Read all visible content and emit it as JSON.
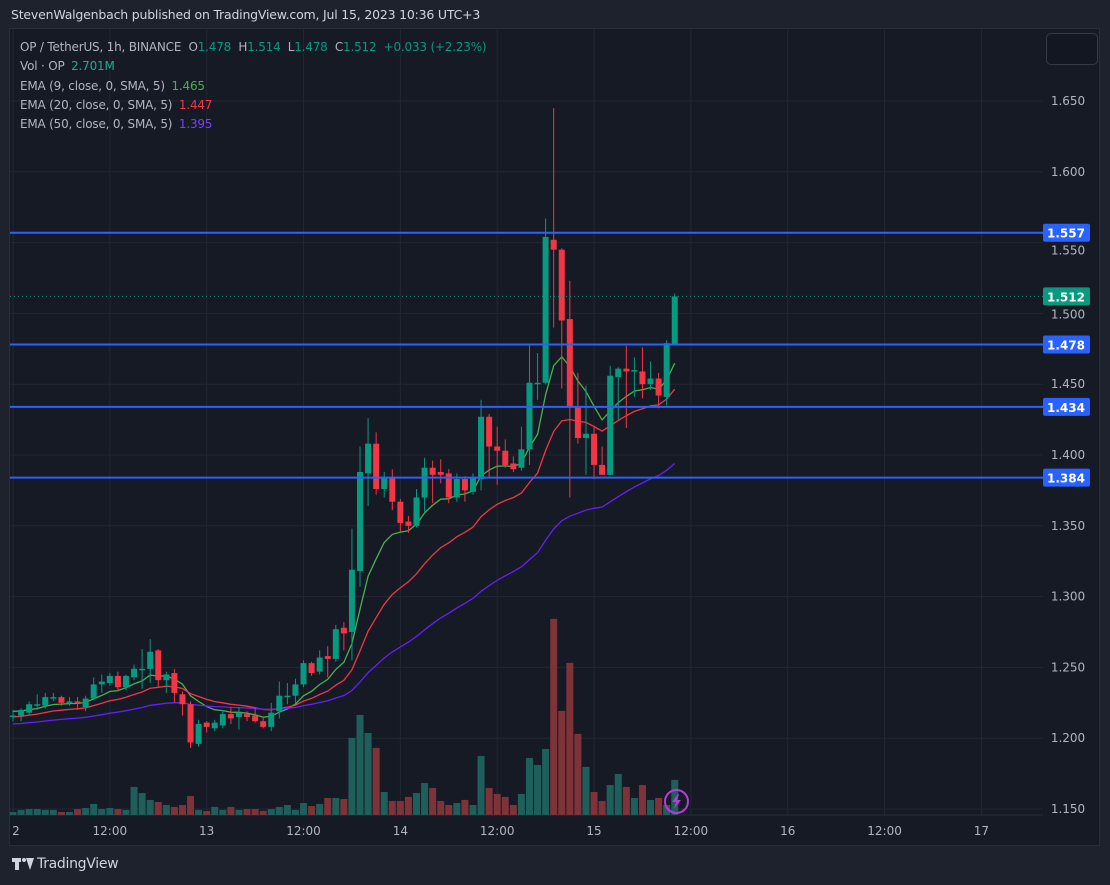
{
  "header": {
    "attribution": "StevenWalgenbach published on TradingView.com, Jul 15, 2023 10:36 UTC+3"
  },
  "legend": {
    "symbol": "OP / TetherUS, 1h, BINANCE",
    "o_label": "O",
    "o_value": "1.478",
    "h_label": "H",
    "h_value": "1.514",
    "l_label": "L",
    "l_value": "1.478",
    "c_label": "C",
    "c_value": "1.512",
    "change": "+0.033 (+2.23%)",
    "vol_label": "Vol · OP",
    "vol_value": "2.701M",
    "ema9_label": "EMA (9, close, 0, SMA, 5)",
    "ema9_value": "1.465",
    "ema20_label": "EMA (20, close, 0, SMA, 5)",
    "ema20_value": "1.447",
    "ema50_label": "EMA (50, close, 0, SMA, 5)",
    "ema50_value": "1.395"
  },
  "footer": {
    "brand": "TradingView"
  },
  "colors": {
    "up": "#089981",
    "down": "#f23645",
    "vol_up": "#1f5f5b",
    "vol_down": "#7e3339",
    "level": "#2962ff",
    "ema9": "#4caf50",
    "ema20": "#f23645",
    "ema50": "#651fff",
    "grid": "#232733",
    "axis_text": "#b2b5be"
  },
  "chart_data": {
    "type": "candlestick",
    "title": "OP / TetherUS, 1h, BINANCE",
    "ylim": [
      1.15,
      1.7
    ],
    "price_ticks": [
      "1.650",
      "1.600",
      "1.550",
      "1.500",
      "1.450",
      "1.400",
      "1.350",
      "1.300",
      "1.250",
      "1.200",
      "1.150"
    ],
    "time_ticks": [
      {
        "label": "2",
        "bar_index": 0
      },
      {
        "label": "12:00",
        "bar_index": 12
      },
      {
        "label": "13",
        "bar_index": 24
      },
      {
        "label": "12:00",
        "bar_index": 36
      },
      {
        "label": "14",
        "bar_index": 48
      },
      {
        "label": "12:00",
        "bar_index": 60
      },
      {
        "label": "15",
        "bar_index": 72
      },
      {
        "label": "12:00",
        "bar_index": 84
      },
      {
        "label": "16",
        "bar_index": 96
      },
      {
        "label": "12:00",
        "bar_index": 108
      },
      {
        "label": "17",
        "bar_index": 120
      }
    ],
    "open": [
      1.216,
      1.216,
      1.218,
      1.224,
      1.223,
      1.229,
      1.229,
      1.226,
      1.226,
      1.222,
      1.228,
      1.238,
      1.239,
      1.244,
      1.236,
      1.243,
      1.249,
      1.249,
      1.262,
      1.241,
      1.246,
      1.231,
      1.224,
      1.196,
      1.211,
      1.207,
      1.209,
      1.217,
      1.215,
      1.217,
      1.216,
      1.212,
      1.208,
      1.219,
      1.23,
      1.23,
      1.238,
      1.253,
      1.247,
      1.258,
      1.256,
      1.278,
      1.275,
      1.318,
      1.387,
      1.408,
      1.376,
      1.384,
      1.367,
      1.353,
      1.35,
      1.37,
      1.391,
      1.388,
      1.387,
      1.37,
      1.383,
      1.374,
      1.383,
      1.427,
      1.406,
      1.403,
      1.394,
      1.391,
      1.404,
      1.451,
      1.451,
      1.552,
      1.545,
      1.496,
      1.434,
      1.412,
      1.415,
      1.393,
      1.386,
      1.455,
      1.461,
      1.459,
      1.459,
      1.45,
      1.454,
      1.441,
      1.478
    ],
    "high": [
      1.22,
      1.221,
      1.226,
      1.231,
      1.232,
      1.232,
      1.23,
      1.229,
      1.229,
      1.23,
      1.243,
      1.245,
      1.246,
      1.247,
      1.245,
      1.252,
      1.263,
      1.27,
      1.263,
      1.247,
      1.249,
      1.233,
      1.226,
      1.213,
      1.212,
      1.213,
      1.22,
      1.222,
      1.222,
      1.219,
      1.222,
      1.215,
      1.225,
      1.24,
      1.239,
      1.242,
      1.255,
      1.254,
      1.262,
      1.265,
      1.28,
      1.282,
      1.348,
      1.406,
      1.426,
      1.416,
      1.388,
      1.39,
      1.369,
      1.357,
      1.376,
      1.398,
      1.396,
      1.397,
      1.39,
      1.387,
      1.385,
      1.387,
      1.439,
      1.429,
      1.42,
      1.411,
      1.399,
      1.42,
      1.478,
      1.472,
      1.567,
      1.645,
      1.546,
      1.523,
      1.458,
      1.449,
      1.42,
      1.406,
      1.463,
      1.462,
      1.477,
      1.469,
      1.476,
      1.466,
      1.458,
      1.481,
      1.514
    ],
    "low": [
      1.212,
      1.212,
      1.216,
      1.22,
      1.221,
      1.226,
      1.223,
      1.223,
      1.22,
      1.219,
      1.227,
      1.232,
      1.237,
      1.233,
      1.234,
      1.241,
      1.235,
      1.239,
      1.236,
      1.232,
      1.225,
      1.216,
      1.193,
      1.194,
      1.204,
      1.205,
      1.207,
      1.21,
      1.206,
      1.212,
      1.211,
      1.207,
      1.205,
      1.214,
      1.224,
      1.225,
      1.236,
      1.244,
      1.245,
      1.243,
      1.254,
      1.262,
      1.255,
      1.307,
      1.364,
      1.372,
      1.37,
      1.361,
      1.346,
      1.345,
      1.349,
      1.36,
      1.366,
      1.38,
      1.366,
      1.367,
      1.367,
      1.372,
      1.375,
      1.384,
      1.379,
      1.391,
      1.388,
      1.389,
      1.393,
      1.439,
      1.45,
      1.49,
      1.447,
      1.37,
      1.408,
      1.386,
      1.383,
      1.386,
      1.386,
      1.425,
      1.419,
      1.441,
      1.44,
      1.446,
      1.433,
      1.435,
      1.478
    ],
    "close": [
      1.216,
      1.22,
      1.224,
      1.224,
      1.229,
      1.229,
      1.225,
      1.226,
      1.225,
      1.228,
      1.238,
      1.24,
      1.244,
      1.236,
      1.244,
      1.249,
      1.249,
      1.261,
      1.241,
      1.245,
      1.232,
      1.224,
      1.197,
      1.21,
      1.208,
      1.211,
      1.217,
      1.214,
      1.218,
      1.215,
      1.212,
      1.208,
      1.218,
      1.23,
      1.23,
      1.238,
      1.253,
      1.246,
      1.257,
      1.256,
      1.277,
      1.274,
      1.319,
      1.388,
      1.408,
      1.376,
      1.384,
      1.367,
      1.352,
      1.35,
      1.37,
      1.391,
      1.386,
      1.386,
      1.37,
      1.383,
      1.375,
      1.384,
      1.427,
      1.406,
      1.403,
      1.393,
      1.39,
      1.404,
      1.451,
      1.451,
      1.554,
      1.545,
      1.495,
      1.434,
      1.412,
      1.415,
      1.393,
      1.386,
      1.456,
      1.461,
      1.459,
      1.46,
      1.45,
      1.454,
      1.442,
      1.479,
      1.512
    ],
    "volume_unit": "M",
    "volume": [
      0.23,
      0.39,
      0.46,
      0.46,
      0.39,
      0.39,
      0.23,
      0.23,
      0.46,
      0.54,
      0.85,
      0.46,
      0.54,
      0.46,
      0.39,
      2.16,
      1.69,
      1.16,
      1.0,
      0.77,
      0.62,
      0.77,
      1.46,
      0.39,
      0.31,
      0.62,
      0.39,
      0.62,
      0.39,
      0.46,
      0.46,
      0.31,
      0.46,
      0.62,
      0.77,
      0.39,
      0.92,
      0.69,
      0.85,
      1.31,
      1.31,
      1.23,
      5.93,
      7.7,
      6.31,
      5.16,
      1.77,
      1.08,
      1.08,
      1.39,
      1.69,
      2.46,
      2.08,
      1.08,
      0.77,
      0.92,
      1.16,
      0.77,
      4.54,
      2.08,
      1.62,
      1.39,
      0.77,
      1.62,
      4.39,
      3.85,
      5.08,
      15.09,
      8.01,
      11.7,
      6.24,
      3.7,
      1.77,
      1.08,
      2.31,
      3.16,
      2.16,
      1.31,
      2.31,
      1.16,
      1.31,
      0.77,
      2.7
    ],
    "ema": [
      {
        "name": "EMA 9",
        "period": 9,
        "start_value": 1.219,
        "color_key": "ema9"
      },
      {
        "name": "EMA 20",
        "period": 20,
        "start_value": 1.215,
        "color_key": "ema20"
      },
      {
        "name": "EMA 50",
        "period": 50,
        "start_value": 1.21,
        "color_key": "ema50"
      }
    ],
    "levels": [
      {
        "value": 1.557,
        "label": "1.557"
      },
      {
        "value": 1.478,
        "label": "1.478"
      },
      {
        "value": 1.434,
        "label": "1.434"
      },
      {
        "value": 1.384,
        "label": "1.384"
      }
    ],
    "last_price": {
      "value": 1.512,
      "label": "1.512"
    }
  }
}
